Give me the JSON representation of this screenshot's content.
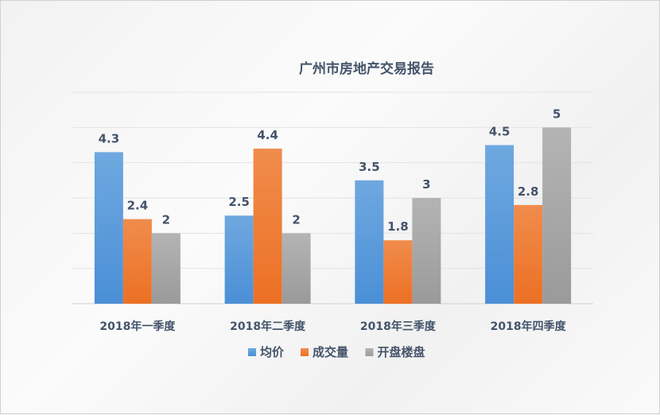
{
  "chart_data": {
    "type": "bar",
    "title": "广州市房地产交易报告",
    "categories": [
      "2018年一季度",
      "2018年二季度",
      "2018年三季度",
      "2018年四季度"
    ],
    "series": [
      {
        "name": "均价",
        "values": [
          4.3,
          2.5,
          3.5,
          4.5
        ],
        "color": "#4a8fd6",
        "color_light": "#6fa8e0"
      },
      {
        "name": "成交量",
        "values": [
          2.4,
          4.4,
          1.8,
          2.8
        ],
        "color": "#ec7024",
        "color_light": "#f08c4c"
      },
      {
        "name": "开盘楼盘",
        "values": [
          2,
          2,
          3,
          5
        ],
        "color": "#9a9a9a",
        "color_light": "#b4b4b4"
      }
    ],
    "ylim": [
      0,
      6
    ],
    "grid": true,
    "legend": "bottom",
    "xlabel": "",
    "ylabel": ""
  }
}
